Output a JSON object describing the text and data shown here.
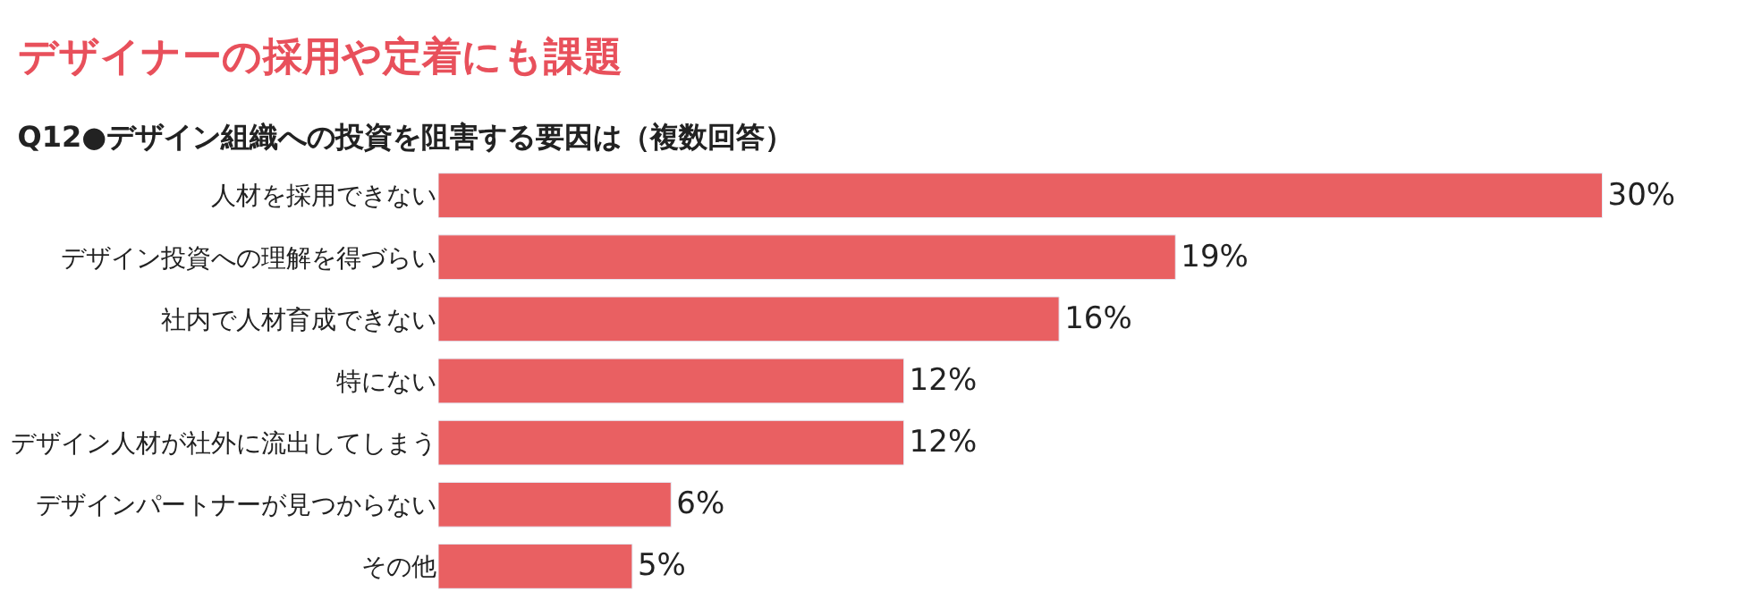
{
  "chart_data": {
    "type": "bar",
    "orientation": "horizontal",
    "title": "デザイナーの採用や定着にも課題",
    "subtitle": "Q12●デザイン組織への投資を阻害する要因は（複数回答）",
    "categories": [
      "人材を採用できない",
      "デザイン投資への理解を得づらい",
      "社内で人材育成できない",
      "特にない",
      "デザイン人材が社外に流出してしまう",
      "デザインパートナーが見つからない",
      "その他"
    ],
    "values": [
      30,
      19,
      16,
      12,
      12,
      6,
      5
    ],
    "value_labels": [
      "30%",
      "19%",
      "16%",
      "12%",
      "12%",
      "6%",
      "5%"
    ],
    "color": "#e96062",
    "legend": false
  }
}
